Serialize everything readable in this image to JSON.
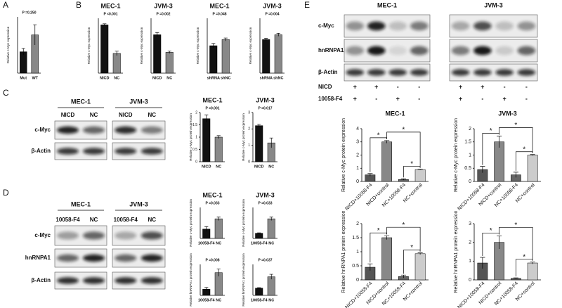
{
  "panel_labels": [
    "A",
    "B",
    "C",
    "D",
    "E"
  ],
  "blots": {
    "c": {
      "groups": [
        "MEC-1",
        "JVM-3"
      ],
      "lanes": [
        "NICD",
        "NC",
        "NICD",
        "NC"
      ],
      "rows": [
        "c-Myc",
        "β-Actin"
      ]
    },
    "d": {
      "groups": [
        "MEC-1",
        "JVM-3"
      ],
      "lanes": [
        "10058-F4",
        "NC",
        "10058-F4",
        "NC"
      ],
      "rows": [
        "c-Myc",
        "hnRNPA1",
        "β-Actin"
      ]
    },
    "e": {
      "groups": [
        "MEC-1",
        "JVM-3"
      ],
      "rows": [
        "c-Myc",
        "hnRNPA1",
        "β-Actin"
      ],
      "conditions": [
        {
          "label": "NICD",
          "signs": [
            "+",
            "+",
            "-",
            "-",
            "+",
            "+",
            "-",
            "-"
          ]
        },
        {
          "label": "10058-F4",
          "signs": [
            "+",
            "-",
            "+",
            "-",
            "+",
            "-",
            "+",
            "-"
          ]
        }
      ]
    }
  },
  "chart_data": [
    {
      "type": "bar",
      "annotation": "P =0.250",
      "ylabel": "Relative c-Myc expression",
      "categories": [
        "Mut",
        "WT"
      ],
      "values": [
        0.38,
        0.68
      ],
      "errors": [
        0.06,
        0.18
      ],
      "colors": [
        "#111111",
        "#888888"
      ],
      "ylim": [
        0,
        1
      ]
    },
    {
      "type": "bar",
      "title": "MEC-1",
      "annotation": "P <0.001",
      "ylabel": "Relative c-Myc expression",
      "categories": [
        "NICD",
        "NC"
      ],
      "values": [
        2.2,
        0.9
      ],
      "errors": [
        0.05,
        0.1
      ],
      "colors": [
        "#111111",
        "#888888"
      ],
      "ylim": [
        0,
        2.5
      ]
    },
    {
      "type": "bar",
      "title": "JVM-3",
      "annotation": "P =0.002",
      "ylabel": "Relative c-Myc expression",
      "categories": [
        "NICD",
        "NC"
      ],
      "values": [
        1.75,
        0.95
      ],
      "errors": [
        0.1,
        0.05
      ],
      "colors": [
        "#111111",
        "#888888"
      ],
      "ylim": [
        0,
        2.5
      ]
    },
    {
      "type": "bar",
      "title": "MEC-1",
      "annotation": "P =0.048",
      "ylabel": "Relative c-Myc expression",
      "categories": [
        "shRNA",
        "shNC"
      ],
      "values": [
        0.75,
        0.92
      ],
      "errors": [
        0.06,
        0.04
      ],
      "colors": [
        "#111111",
        "#888888"
      ],
      "ylim": [
        0,
        1.5
      ]
    },
    {
      "type": "bar",
      "title": "JVM-3",
      "annotation": "P =0.004",
      "ylabel": "Relative c-Myc expression",
      "categories": [
        "shRNA",
        "shNC"
      ],
      "values": [
        0.92,
        1.05
      ],
      "errors": [
        0.03,
        0.04
      ],
      "colors": [
        "#111111",
        "#888888"
      ],
      "ylim": [
        0,
        1.5
      ]
    },
    {
      "type": "bar",
      "title": "MEC-1",
      "annotation": "P =0.001",
      "ylabel": "Relative c-Myc protein expression",
      "categories": [
        "NICD",
        "NC"
      ],
      "values": [
        1.75,
        1.0
      ],
      "errors": [
        0.15,
        0.06
      ],
      "colors": [
        "#111111",
        "#888888"
      ],
      "ylim": [
        0,
        2
      ],
      "yticks": [
        0,
        0.5,
        1,
        1.5,
        2
      ]
    },
    {
      "type": "bar",
      "title": "JVM-3",
      "annotation": "P =0.017",
      "ylabel": "Relative c-Myc protein expression",
      "categories": [
        "NICD",
        "NC"
      ],
      "values": [
        2.2,
        1.15
      ],
      "errors": [
        0.08,
        0.3
      ],
      "colors": [
        "#111111",
        "#888888"
      ],
      "ylim": [
        0,
        3
      ],
      "yticks": [
        0,
        1,
        2,
        3
      ]
    },
    {
      "type": "bar",
      "title": "MEC-1",
      "annotation": "P =0.033",
      "ylabel": "Relative c-Myc protein expression",
      "categories": [
        "10058-F4",
        "NC"
      ],
      "values": [
        0.45,
        0.95
      ],
      "errors": [
        0.12,
        0.08
      ],
      "colors": [
        "#111111",
        "#888888"
      ],
      "ylim": [
        0,
        1.5
      ]
    },
    {
      "type": "bar",
      "title": "JVM-3",
      "annotation": "P =0.033",
      "ylabel": "Relative c-Myc protein expression",
      "categories": [
        "10058-F4",
        "NC"
      ],
      "values": [
        0.25,
        0.95
      ],
      "errors": [
        0.02,
        0.08
      ],
      "colors": [
        "#111111",
        "#888888"
      ],
      "ylim": [
        0,
        1.5
      ]
    },
    {
      "type": "bar",
      "annotation": "P =0.008",
      "ylabel": "Relative hnRNPA1 protein expression",
      "categories": [
        "10058-F4",
        "NC"
      ],
      "values": [
        0.3,
        1.1
      ],
      "errors": [
        0.08,
        0.18
      ],
      "colors": [
        "#111111",
        "#888888"
      ],
      "ylim": [
        0,
        1.5
      ]
    },
    {
      "type": "bar",
      "annotation": "P =0.037",
      "ylabel": "Relative hnRNPA1 protein expression",
      "categories": [
        "10058-F4",
        "NC"
      ],
      "values": [
        0.35,
        0.9
      ],
      "errors": [
        0.02,
        0.12
      ],
      "colors": [
        "#111111",
        "#888888"
      ],
      "ylim": [
        0,
        1.5
      ]
    },
    {
      "type": "bar",
      "title": "MEC-1",
      "annotations": [
        "*",
        "*",
        "*"
      ],
      "ylabel": "Relative c-Myc protein expression",
      "categories": [
        "NICD+10058-F4",
        "NICD+control",
        "NC+10058-F4",
        "NC+control"
      ],
      "values": [
        0.5,
        3.0,
        0.15,
        0.9
      ],
      "errors": [
        0.1,
        0.1,
        0.05,
        0.03
      ],
      "colors": [
        "#555555",
        "#888888",
        "#666666",
        "#cccccc"
      ],
      "ylim": [
        0,
        4
      ],
      "yticks": [
        0,
        1,
        2,
        3,
        4
      ]
    },
    {
      "type": "bar",
      "title": "JVM-3",
      "annotations": [
        "*",
        "*",
        "*"
      ],
      "ylabel": "Relative c-Myc protein expression",
      "categories": [
        "NICD+10058-F4",
        "NICD+control",
        "NC+10058-F4",
        "NC+control"
      ],
      "values": [
        0.45,
        1.5,
        0.25,
        1.0
      ],
      "errors": [
        0.12,
        0.22,
        0.1,
        0.02
      ],
      "colors": [
        "#555555",
        "#888888",
        "#666666",
        "#cccccc"
      ],
      "ylim": [
        0,
        2
      ],
      "yticks": [
        0,
        0.5,
        1,
        1.5,
        2
      ]
    },
    {
      "type": "bar",
      "annotations": [
        "*",
        "*",
        "*"
      ],
      "ylabel": "Relative hnRNPA1 protein expression",
      "categories": [
        "NICD+10058-F4",
        "NICD+control",
        "NC+10058-F4",
        "NC+control"
      ],
      "values": [
        0.45,
        1.5,
        0.12,
        0.93
      ],
      "errors": [
        0.12,
        0.07,
        0.05,
        0.03
      ],
      "colors": [
        "#555555",
        "#888888",
        "#666666",
        "#cccccc"
      ],
      "ylim": [
        0,
        2
      ],
      "yticks": [
        0,
        0.5,
        1,
        1.5,
        2
      ]
    },
    {
      "type": "bar",
      "annotations": [
        "*",
        "*",
        "*"
      ],
      "ylabel": "Relative hnRNPA1 protein expression",
      "categories": [
        "NICD+10058-F4",
        "NICD+control",
        "NC+10058-F4",
        "NC+control"
      ],
      "values": [
        0.9,
        2.0,
        0.08,
        0.9
      ],
      "errors": [
        0.3,
        0.35,
        0.03,
        0.05
      ],
      "colors": [
        "#555555",
        "#888888",
        "#666666",
        "#cccccc"
      ],
      "ylim": [
        0,
        3
      ],
      "yticks": [
        0,
        1,
        2,
        3
      ]
    }
  ]
}
